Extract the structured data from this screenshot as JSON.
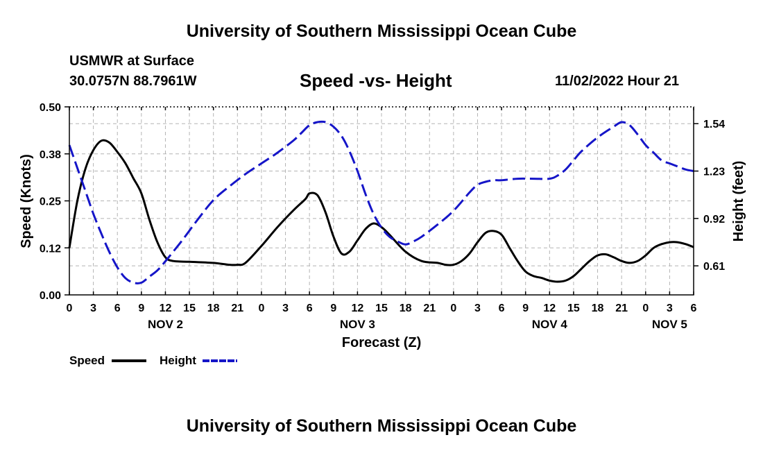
{
  "header": {
    "title": "University of Southern Mississippi Ocean Cube",
    "station": "USMWR at Surface",
    "coords": "30.0757N  88.7961W",
    "subtitle": "Speed -vs- Height",
    "datetime": "11/02/2022 Hour 21"
  },
  "footer": {
    "title": "University of Southern Mississippi Ocean Cube"
  },
  "legend": {
    "speed_label": "Speed",
    "height_label": "Height"
  },
  "colors": {
    "speed": "#000000",
    "height": "#1515c8",
    "grid": "#b4b4b4"
  },
  "chart_data": {
    "type": "line",
    "title": "Speed -vs- Height",
    "xlabel": "Forecast (Z)",
    "ylabel": "Speed (Knots)",
    "y2label": "Height (feet)",
    "xlim": [
      0,
      78
    ],
    "ylim": [
      0,
      0.5
    ],
    "y2lim": [
      0.42,
      1.65
    ],
    "y_ticks": [
      {
        "v": 0.0,
        "label": "0.00"
      },
      {
        "v": 0.125,
        "label": "0.12"
      },
      {
        "v": 0.25,
        "label": "0.25"
      },
      {
        "v": 0.375,
        "label": "0.38"
      },
      {
        "v": 0.5,
        "label": "0.50"
      }
    ],
    "y2_ticks": [
      {
        "v": 0.61,
        "label": "0.61"
      },
      {
        "v": 0.92,
        "label": "0.92"
      },
      {
        "v": 1.23,
        "label": "1.23"
      },
      {
        "v": 1.54,
        "label": "1.54"
      }
    ],
    "x_ticks": [
      {
        "v": 0,
        "label": "0"
      },
      {
        "v": 3,
        "label": "3"
      },
      {
        "v": 6,
        "label": "6"
      },
      {
        "v": 9,
        "label": "9"
      },
      {
        "v": 12,
        "label": "12"
      },
      {
        "v": 15,
        "label": "15"
      },
      {
        "v": 18,
        "label": "18"
      },
      {
        "v": 21,
        "label": "21"
      },
      {
        "v": 24,
        "label": "0"
      },
      {
        "v": 27,
        "label": "3"
      },
      {
        "v": 30,
        "label": "6"
      },
      {
        "v": 33,
        "label": "9"
      },
      {
        "v": 36,
        "label": "12"
      },
      {
        "v": 39,
        "label": "15"
      },
      {
        "v": 42,
        "label": "18"
      },
      {
        "v": 45,
        "label": "21"
      },
      {
        "v": 48,
        "label": "0"
      },
      {
        "v": 51,
        "label": "3"
      },
      {
        "v": 54,
        "label": "6"
      },
      {
        "v": 57,
        "label": "9"
      },
      {
        "v": 60,
        "label": "12"
      },
      {
        "v": 63,
        "label": "15"
      },
      {
        "v": 66,
        "label": "18"
      },
      {
        "v": 69,
        "label": "21"
      },
      {
        "v": 72,
        "label": "0"
      },
      {
        "v": 75,
        "label": "3"
      },
      {
        "v": 78,
        "label": "6"
      }
    ],
    "day_labels": [
      {
        "v": 12,
        "label": "NOV 2"
      },
      {
        "v": 36,
        "label": "NOV 3"
      },
      {
        "v": 60,
        "label": "NOV 4"
      },
      {
        "v": 75,
        "label": "NOV 5"
      }
    ],
    "series": [
      {
        "name": "Speed",
        "axis": "left",
        "style": "solid",
        "x": [
          0,
          1,
          2,
          3,
          4,
          5,
          6,
          7,
          8,
          9,
          10,
          11,
          12,
          13,
          15,
          18,
          20,
          21,
          22,
          24,
          26,
          28,
          29.5,
          30,
          31,
          32,
          33,
          34,
          35,
          36,
          37,
          38,
          39,
          40,
          42,
          44,
          46,
          47,
          48,
          49,
          50,
          51,
          52,
          53,
          54,
          55,
          56,
          57,
          58,
          59,
          60,
          61,
          62,
          63,
          64,
          65,
          66,
          67,
          68,
          69,
          70,
          71,
          72,
          73,
          74,
          75,
          76,
          77,
          78
        ],
        "y": [
          0.125,
          0.25,
          0.335,
          0.385,
          0.41,
          0.405,
          0.38,
          0.35,
          0.31,
          0.27,
          0.2,
          0.14,
          0.1,
          0.09,
          0.088,
          0.085,
          0.08,
          0.08,
          0.085,
          0.13,
          0.18,
          0.225,
          0.255,
          0.27,
          0.265,
          0.22,
          0.155,
          0.11,
          0.115,
          0.145,
          0.175,
          0.19,
          0.18,
          0.16,
          0.115,
          0.09,
          0.085,
          0.08,
          0.08,
          0.09,
          0.11,
          0.14,
          0.165,
          0.17,
          0.16,
          0.125,
          0.09,
          0.062,
          0.05,
          0.045,
          0.038,
          0.035,
          0.038,
          0.05,
          0.07,
          0.09,
          0.105,
          0.108,
          0.1,
          0.09,
          0.085,
          0.09,
          0.105,
          0.125,
          0.135,
          0.14,
          0.14,
          0.135,
          0.127
        ]
      },
      {
        "name": "Height",
        "axis": "right",
        "style": "dashed",
        "x": [
          0,
          1,
          2,
          3,
          4,
          5,
          6,
          7,
          8,
          9,
          10,
          11,
          12,
          14,
          16,
          18,
          20,
          22,
          24,
          26,
          28,
          29,
          30,
          31,
          32,
          33,
          34,
          35,
          36,
          37,
          38,
          39,
          40,
          41,
          42,
          43,
          44,
          46,
          48,
          50,
          51,
          52,
          53,
          54,
          56,
          58,
          60,
          61,
          62,
          63,
          64,
          66,
          68,
          69,
          70,
          71,
          72,
          73,
          74,
          75,
          76,
          77,
          78
        ],
        "y": [
          1.4,
          1.25,
          1.1,
          0.95,
          0.82,
          0.7,
          0.6,
          0.53,
          0.5,
          0.5,
          0.54,
          0.58,
          0.64,
          0.77,
          0.91,
          1.04,
          1.13,
          1.21,
          1.28,
          1.35,
          1.43,
          1.48,
          1.53,
          1.55,
          1.55,
          1.52,
          1.46,
          1.36,
          1.23,
          1.08,
          0.95,
          0.86,
          0.8,
          0.77,
          0.75,
          0.77,
          0.8,
          0.88,
          0.97,
          1.09,
          1.14,
          1.16,
          1.17,
          1.17,
          1.18,
          1.18,
          1.18,
          1.2,
          1.24,
          1.3,
          1.36,
          1.45,
          1.52,
          1.55,
          1.53,
          1.47,
          1.4,
          1.35,
          1.3,
          1.28,
          1.26,
          1.24,
          1.23
        ]
      }
    ]
  }
}
